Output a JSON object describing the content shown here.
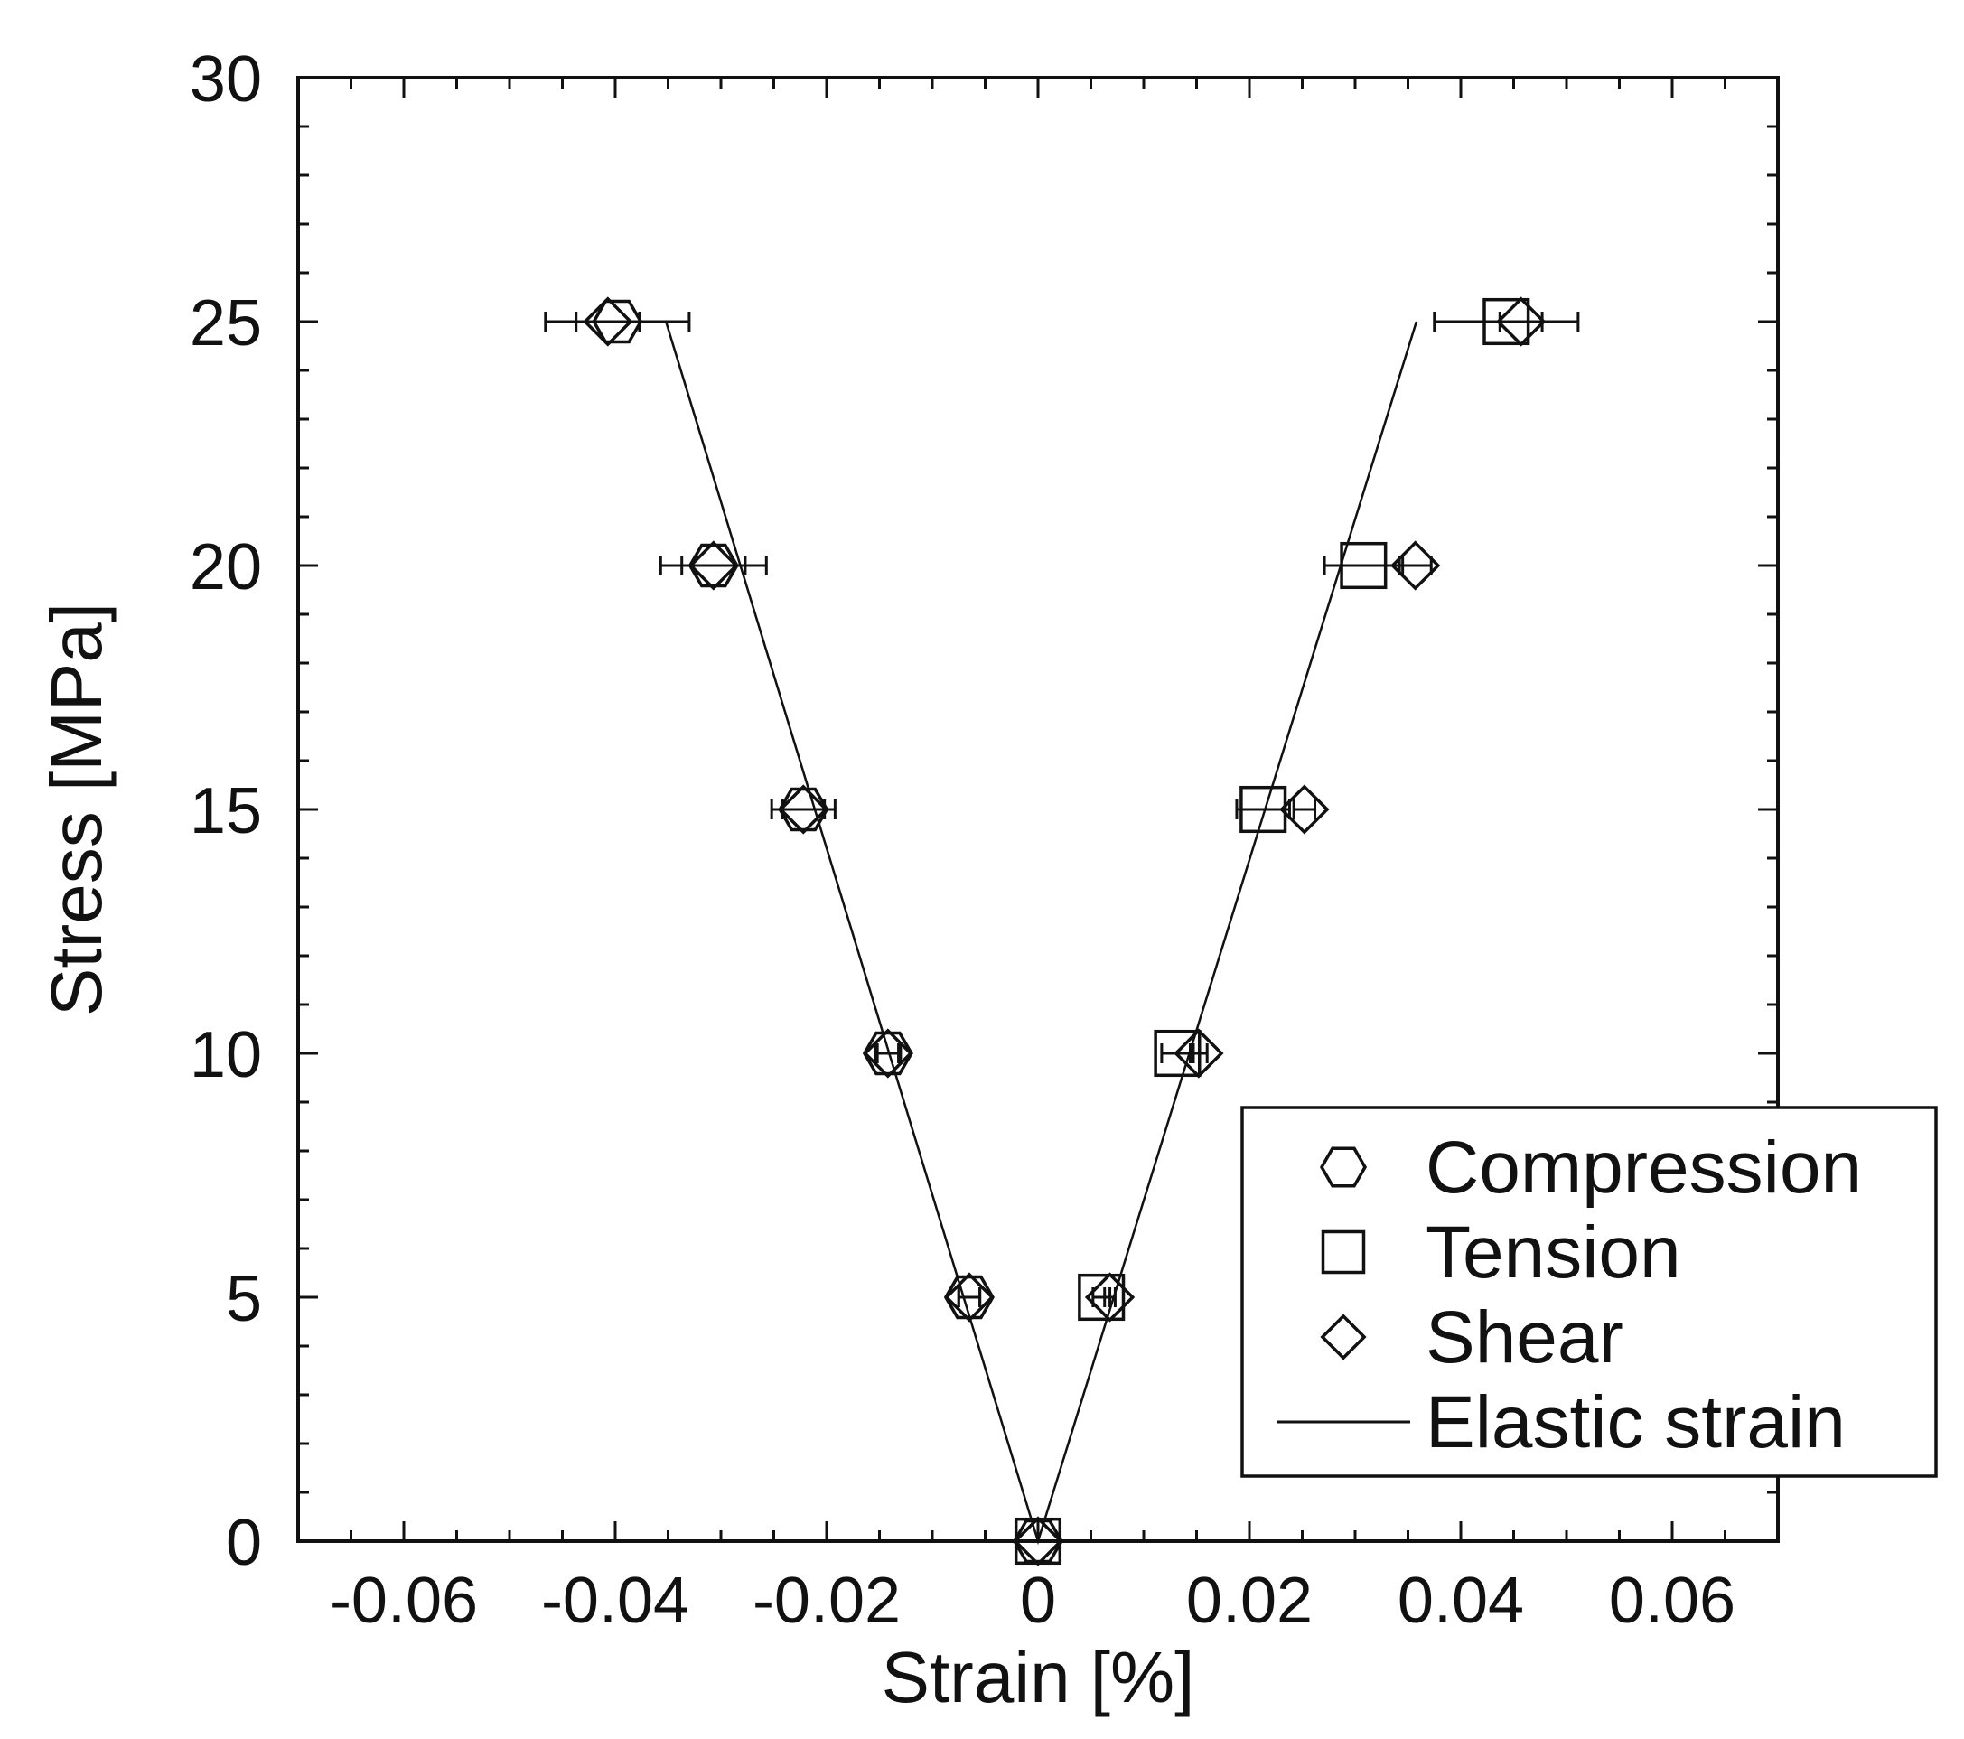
{
  "chart_data": {
    "type": "scatter",
    "xlabel": "Strain [%]",
    "ylabel": "Stress [MPa]",
    "xlim": [
      -0.07,
      0.07
    ],
    "ylim": [
      0,
      30
    ],
    "x_ticks": [
      -0.06,
      -0.04,
      -0.02,
      0,
      0.02,
      0.04,
      0.06
    ],
    "x_tick_labels": [
      "-0.06",
      "-0.04",
      "-0.02",
      "0",
      "0.02",
      "0.04",
      "0.06"
    ],
    "y_ticks": [
      0,
      5,
      10,
      15,
      20,
      25,
      30
    ],
    "y_tick_labels": [
      "0",
      "5",
      "10",
      "15",
      "20",
      "25",
      "30"
    ],
    "grid": false,
    "legend_position": "bottom-right",
    "series": [
      {
        "name": "Compression",
        "marker": "hexagon",
        "points": [
          {
            "x": 0,
            "y": 0,
            "xerr": 0
          },
          {
            "x": -0.0065,
            "y": 5,
            "xerr": 0.001
          },
          {
            "x": -0.0142,
            "y": 10,
            "xerr": 0.0012
          },
          {
            "x": -0.0222,
            "y": 15,
            "xerr": 0.003
          },
          {
            "x": -0.0307,
            "y": 20,
            "xerr": 0.005
          },
          {
            "x": -0.0398,
            "y": 25,
            "xerr": 0.0068
          }
        ]
      },
      {
        "name": "Tension",
        "marker": "square",
        "points": [
          {
            "x": 0,
            "y": 0,
            "xerr": 0
          },
          {
            "x": 0.006,
            "y": 5,
            "xerr": 0.0008
          },
          {
            "x": 0.0132,
            "y": 10,
            "xerr": 0.0015
          },
          {
            "x": 0.0213,
            "y": 15,
            "xerr": 0.0025
          },
          {
            "x": 0.0308,
            "y": 20,
            "xerr": 0.0037
          },
          {
            "x": 0.0443,
            "y": 25,
            "xerr": 0.0068
          }
        ]
      },
      {
        "name": "Shear",
        "marker": "diamond",
        "points": [
          {
            "x": 0,
            "y": 0,
            "xerr": 0
          },
          {
            "x": -0.0065,
            "y": 5,
            "xerr": 0.001
          },
          {
            "x": -0.0142,
            "y": 10,
            "xerr": 0.001
          },
          {
            "x": -0.0222,
            "y": 15,
            "xerr": 0.002
          },
          {
            "x": -0.0307,
            "y": 20,
            "xerr": 0.003
          },
          {
            "x": -0.0407,
            "y": 25,
            "xerr": 0.003
          },
          {
            "x": 0.0068,
            "y": 5,
            "xerr": 0.0005
          },
          {
            "x": 0.0152,
            "y": 10,
            "xerr": 0.0008
          },
          {
            "x": 0.0252,
            "y": 15,
            "xerr": 0.001
          },
          {
            "x": 0.0357,
            "y": 20,
            "xerr": 0.0015
          },
          {
            "x": 0.0457,
            "y": 25,
            "xerr": 0.002
          }
        ]
      },
      {
        "name": "Elastic strain",
        "marker": "line",
        "points": [
          {
            "x": -0.0352,
            "y": 25
          },
          {
            "x": 0,
            "y": 0
          },
          {
            "x": 0.0358,
            "y": 25
          }
        ]
      }
    ]
  }
}
